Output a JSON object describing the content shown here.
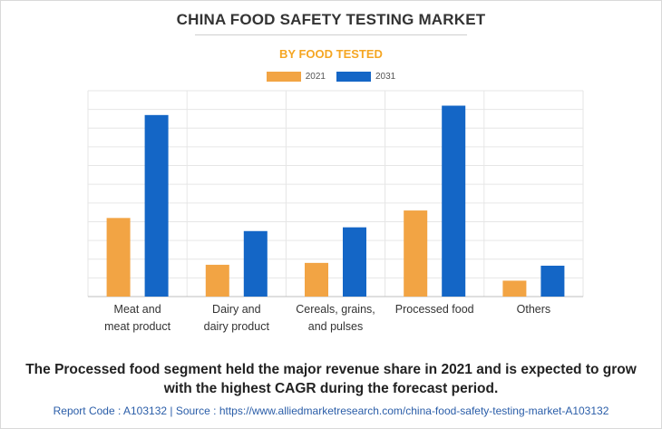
{
  "title": "CHINA FOOD SAFETY TESTING MARKET",
  "subtitle": "BY FOOD TESTED",
  "colors": {
    "accent": "#f5a623",
    "s2021": "#f2a444",
    "s2031": "#1466c6",
    "grid": "#e6e6e6"
  },
  "chart_data": {
    "type": "bar",
    "title": "CHINA FOOD SAFETY TESTING MARKET",
    "subtitle": "BY FOOD TESTED",
    "categories": [
      [
        "Meat and",
        "meat product"
      ],
      [
        "Dairy and",
        "dairy product"
      ],
      [
        "Cereals, grains,",
        "and pulses"
      ],
      [
        "Processed food"
      ],
      [
        "Others"
      ]
    ],
    "series": [
      {
        "name": "2021",
        "values": [
          4.2,
          1.7,
          1.8,
          4.6,
          0.85
        ]
      },
      {
        "name": "2031",
        "values": [
          9.7,
          3.5,
          3.7,
          10.2,
          1.65
        ]
      }
    ],
    "ylim": [
      0,
      11
    ],
    "grid": true,
    "legend": "top-center",
    "xlabel": "",
    "ylabel": ""
  },
  "caption": "The Processed food segment held the major revenue share in 2021 and is expected to grow with the highest CAGR during the forecast period.",
  "footer": "Report Code : A103132  |  Source : https://www.alliedmarketresearch.com/china-food-safety-testing-market-A103132"
}
